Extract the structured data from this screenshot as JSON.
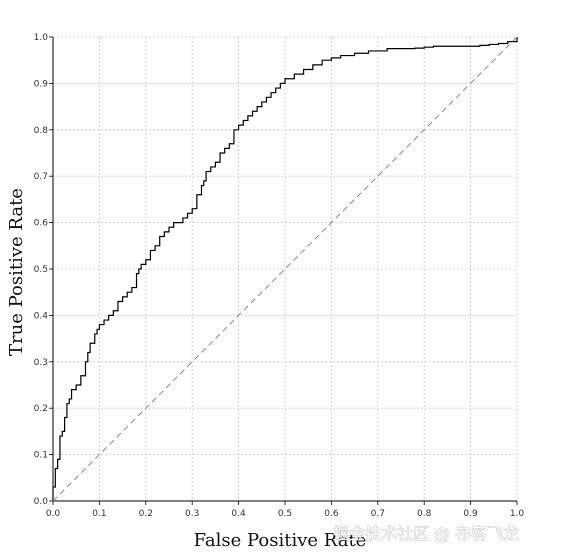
{
  "chart_data": {
    "type": "line",
    "title": "",
    "xlabel": "False Positive Rate",
    "ylabel": "True Positive Rate",
    "xlim": [
      0.0,
      1.0
    ],
    "ylim": [
      0.0,
      1.0
    ],
    "xticks": [
      "0.0",
      "0.1",
      "0.2",
      "0.3",
      "0.4",
      "0.5",
      "0.6",
      "0.7",
      "0.8",
      "0.9",
      "1.0"
    ],
    "yticks": [
      "0.0",
      "0.1",
      "0.2",
      "0.3",
      "0.4",
      "0.5",
      "0.6",
      "0.7",
      "0.8",
      "0.9",
      "1.0"
    ],
    "grid": true,
    "series": [
      {
        "style": "solid",
        "color": "#000000",
        "x": [
          0.0,
          0.0,
          0.005,
          0.005,
          0.01,
          0.015,
          0.015,
          0.02,
          0.025,
          0.03,
          0.035,
          0.04,
          0.04,
          0.05,
          0.06,
          0.07,
          0.075,
          0.08,
          0.09,
          0.095,
          0.1,
          0.11,
          0.12,
          0.13,
          0.14,
          0.15,
          0.16,
          0.17,
          0.18,
          0.185,
          0.19,
          0.2,
          0.21,
          0.22,
          0.23,
          0.24,
          0.25,
          0.26,
          0.27,
          0.28,
          0.29,
          0.3,
          0.31,
          0.32,
          0.325,
          0.33,
          0.34,
          0.35,
          0.36,
          0.37,
          0.38,
          0.39,
          0.4,
          0.41,
          0.42,
          0.43,
          0.44,
          0.45,
          0.46,
          0.47,
          0.48,
          0.49,
          0.5,
          0.52,
          0.54,
          0.56,
          0.58,
          0.6,
          0.62,
          0.65,
          0.68,
          0.7,
          0.72,
          0.75,
          0.78,
          0.8,
          0.82,
          0.84,
          0.88,
          0.9,
          0.92,
          0.94,
          0.96,
          0.98,
          1.0
        ],
        "y": [
          0.0,
          0.03,
          0.05,
          0.07,
          0.09,
          0.12,
          0.14,
          0.15,
          0.18,
          0.21,
          0.22,
          0.23,
          0.24,
          0.25,
          0.27,
          0.3,
          0.32,
          0.34,
          0.36,
          0.37,
          0.38,
          0.39,
          0.4,
          0.41,
          0.43,
          0.44,
          0.45,
          0.46,
          0.49,
          0.5,
          0.51,
          0.52,
          0.54,
          0.55,
          0.57,
          0.58,
          0.59,
          0.6,
          0.6,
          0.61,
          0.62,
          0.63,
          0.66,
          0.68,
          0.69,
          0.71,
          0.72,
          0.73,
          0.75,
          0.76,
          0.77,
          0.8,
          0.81,
          0.82,
          0.83,
          0.84,
          0.85,
          0.86,
          0.87,
          0.88,
          0.89,
          0.9,
          0.91,
          0.92,
          0.93,
          0.94,
          0.95,
          0.955,
          0.96,
          0.965,
          0.97,
          0.97,
          0.975,
          0.975,
          0.976,
          0.978,
          0.98,
          0.98,
          0.98,
          0.98,
          0.982,
          0.984,
          0.986,
          0.99,
          1.0
        ]
      },
      {
        "style": "dashed",
        "color": "#888888",
        "x": [
          0.0,
          1.0
        ],
        "y": [
          0.0,
          1.0
        ]
      }
    ]
  },
  "watermark": "掘金技术社区 @ 布客飞龙"
}
